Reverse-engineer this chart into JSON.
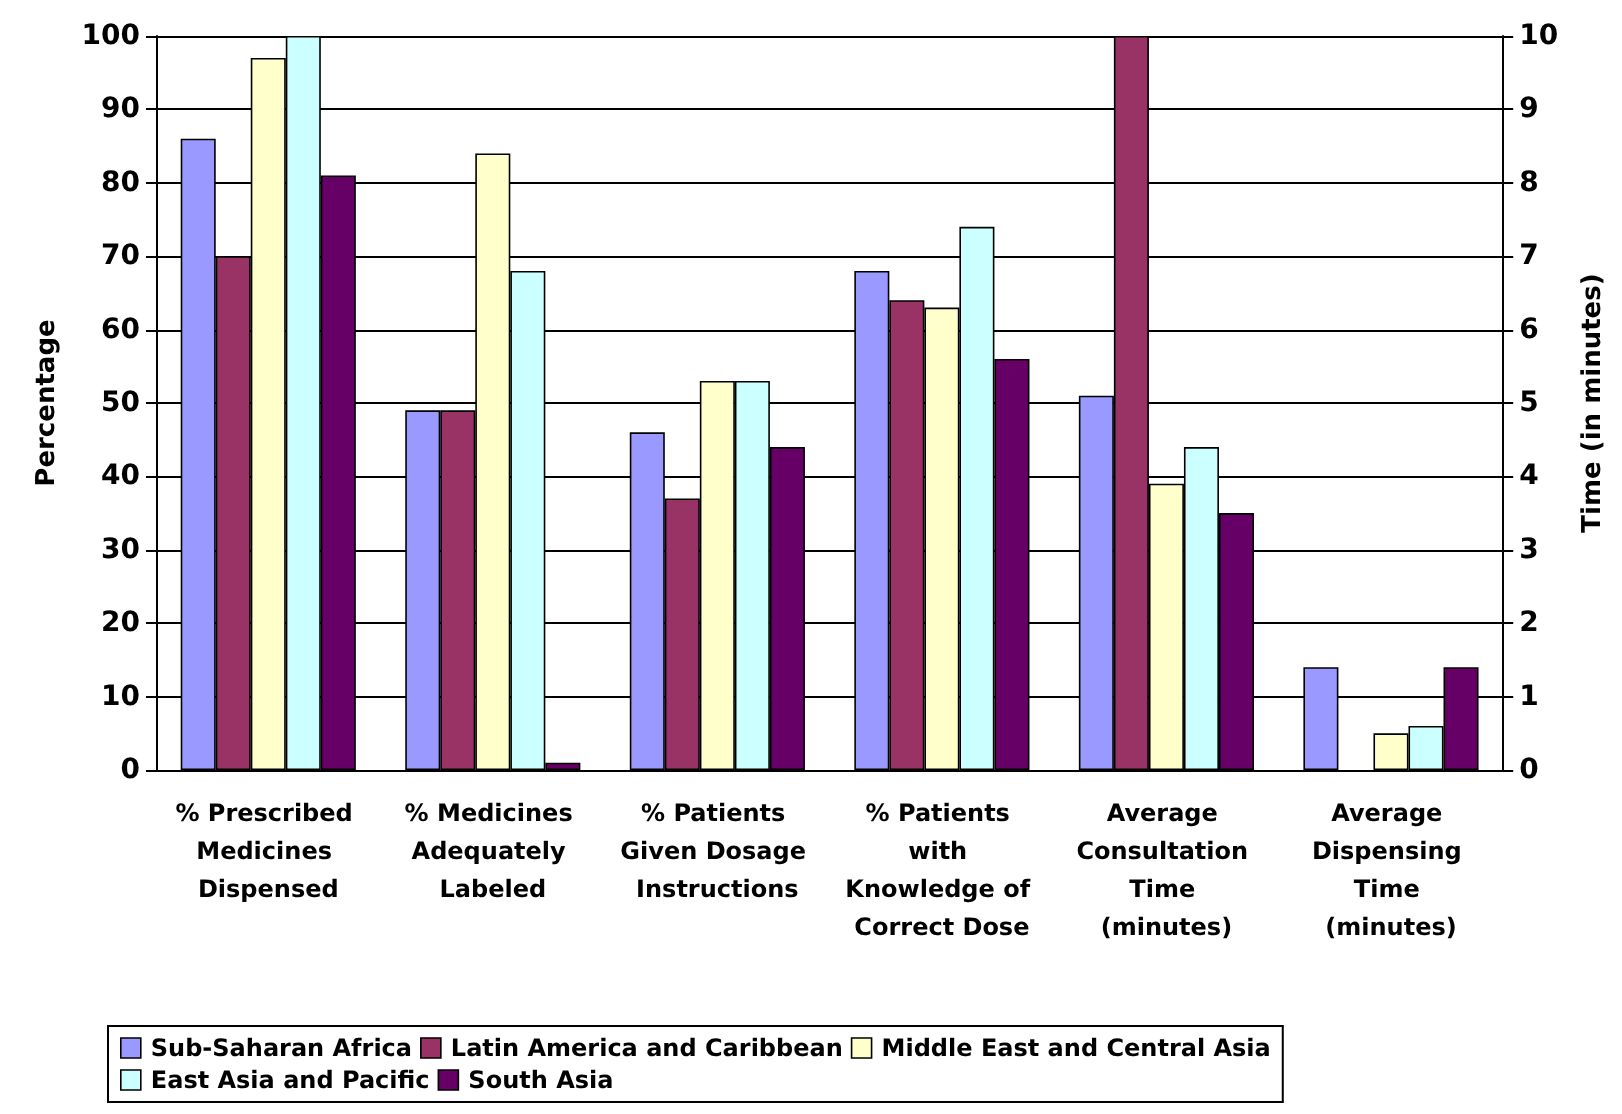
{
  "chart_data": {
    "type": "bar",
    "categories": [
      "% Prescribed Medicines Dispensed",
      "% Medicines Adequately Labeled",
      "% Patients Given Dosage Instructions",
      "% Patients with Knowledge of Correct Dose",
      "Average Consultation Time (minutes)",
      "Average Dispensing Time (minutes)"
    ],
    "series": [
      {
        "name": "Sub-Saharan Africa",
        "color": "#9999ff",
        "axis": "y",
        "values": [
          86,
          49,
          46,
          68,
          null,
          null
        ]
      },
      {
        "name": "Latin America and Caribbean",
        "color": "#993366",
        "axis": "y",
        "values": [
          70,
          49,
          37,
          64,
          null,
          null
        ]
      },
      {
        "name": "Middle East and Central Asia",
        "color": "#ffffcc",
        "axis": "y",
        "values": [
          97,
          84,
          53,
          63,
          null,
          null
        ]
      },
      {
        "name": "East Asia and Pacific",
        "color": "#ccffff",
        "axis": "y",
        "values": [
          100,
          68,
          53,
          74,
          null,
          null
        ]
      },
      {
        "name": "South Asia",
        "color": "#660066",
        "axis": "y",
        "values": [
          81,
          1,
          44,
          56,
          null,
          null
        ]
      },
      {
        "color": "#9999ff",
        "axis": "y2",
        "values": [
          null,
          null,
          null,
          null,
          5.1,
          1.4
        ]
      },
      {
        "color": "#993366",
        "axis": "y2",
        "values": [
          null,
          null,
          null,
          null,
          10,
          null
        ]
      },
      {
        "color": "#ffffcc",
        "axis": "y2",
        "values": [
          null,
          null,
          null,
          null,
          3.9,
          0.5
        ]
      },
      {
        "color": "#ccffff",
        "axis": "y2",
        "values": [
          null,
          null,
          null,
          null,
          4.4,
          0.6
        ]
      },
      {
        "color": "#660066",
        "axis": "y2",
        "values": [
          null,
          null,
          null,
          null,
          3.5,
          1.4
        ]
      }
    ],
    "ylabel": "Percentage",
    "y2label": "Time (in minutes)",
    "ylim": [
      0,
      100
    ],
    "yticks": [
      0,
      10,
      20,
      30,
      40,
      50,
      60,
      70,
      80,
      90,
      100
    ],
    "y2lim": [
      0,
      10
    ],
    "y2ticks": [
      0,
      1,
      2,
      3,
      4,
      5,
      6,
      7,
      8,
      9,
      10
    ],
    "grid": "y",
    "legend": "bottom"
  }
}
